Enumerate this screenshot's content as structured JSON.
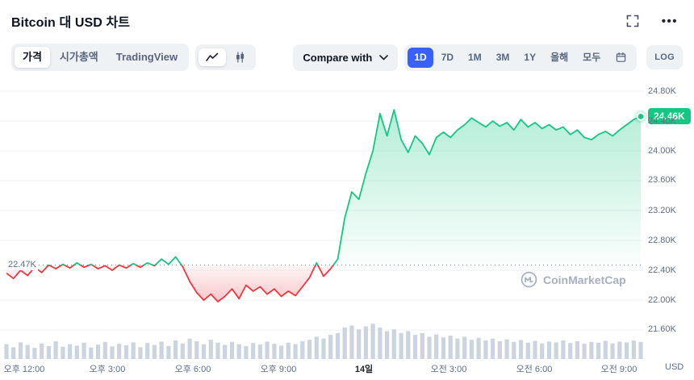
{
  "header": {
    "title": "Bitcoin 대 USD 차트"
  },
  "toolbar": {
    "tabs": [
      {
        "label": "가격",
        "active": true
      },
      {
        "label": "시가총액",
        "active": false
      },
      {
        "label": "TradingView",
        "active": false
      }
    ],
    "chart_type_toggle": [
      {
        "icon": "line-chart-icon",
        "active": true
      },
      {
        "icon": "candlestick-icon",
        "active": false
      }
    ],
    "compare_label": "Compare with",
    "ranges": [
      {
        "label": "1D",
        "active": true
      },
      {
        "label": "7D",
        "active": false
      },
      {
        "label": "1M",
        "active": false
      },
      {
        "label": "3M",
        "active": false
      },
      {
        "label": "1Y",
        "active": false
      },
      {
        "label": "올해",
        "active": false
      },
      {
        "label": "모두",
        "active": false
      }
    ],
    "log_label": "LOG"
  },
  "chart": {
    "baseline_label": "22.47K",
    "current_price_label": "24.46K",
    "y_ticks": [
      "24.80K",
      "24.40K",
      "24.00K",
      "23.60K",
      "23.20K",
      "22.80K",
      "22.40K",
      "22.00K",
      "21.60K"
    ],
    "x_ticks": [
      "오후 12:00",
      "오후 3:00",
      "오후 6:00",
      "오후 9:00",
      "14일",
      "오전 3:00",
      "오전 6:00",
      "오전 9:00"
    ],
    "x_tick_emphasis_index": 4,
    "unit_label": "USD",
    "watermark": "CoinMarketCap"
  },
  "colors": {
    "green": "#16c784",
    "red": "#ea3943",
    "blue": "#3861fb",
    "grid": "#eff2f5",
    "axis_text": "#616e85",
    "baseline": "#808a9d",
    "volume": "#ccd4e0",
    "watermark": "#a6b0c3"
  },
  "chart_data": {
    "type": "area",
    "title": "Bitcoin 대 USD 차트",
    "unit": "USD",
    "baseline": 22.47,
    "last_price": 24.46,
    "interval_minutes": 15,
    "ylim": [
      21.45,
      24.93
    ],
    "y_ticks_values": [
      24.8,
      24.4,
      24.0,
      23.6,
      23.2,
      22.8,
      22.4,
      22.0,
      21.6
    ],
    "x_tick_labels": [
      "오후 12:00",
      "오후 3:00",
      "오후 6:00",
      "오후 9:00",
      "14일",
      "오전 3:00",
      "오전 6:00",
      "오전 9:00"
    ],
    "prices": [
      22.36,
      22.29,
      22.4,
      22.33,
      22.44,
      22.37,
      22.47,
      22.42,
      22.48,
      22.43,
      22.5,
      22.44,
      22.48,
      22.42,
      22.46,
      22.4,
      22.47,
      22.43,
      22.49,
      22.44,
      22.5,
      22.46,
      22.55,
      22.48,
      22.58,
      22.45,
      22.25,
      22.1,
      22.0,
      22.08,
      21.98,
      22.05,
      22.15,
      22.02,
      22.2,
      22.12,
      22.18,
      22.08,
      22.15,
      22.05,
      22.12,
      22.06,
      22.18,
      22.3,
      22.5,
      22.32,
      22.42,
      22.55,
      23.1,
      23.45,
      23.35,
      23.7,
      24.0,
      24.5,
      24.2,
      24.55,
      24.15,
      23.98,
      24.2,
      24.1,
      23.95,
      24.18,
      24.25,
      24.18,
      24.28,
      24.35,
      24.44,
      24.38,
      24.32,
      24.4,
      24.33,
      24.38,
      24.28,
      24.42,
      24.32,
      24.38,
      24.3,
      24.35,
      24.28,
      24.32,
      24.22,
      24.28,
      24.18,
      24.15,
      24.22,
      24.26,
      24.2,
      24.28,
      24.35,
      24.42,
      24.46
    ],
    "volumes": [
      0.4,
      0.32,
      0.45,
      0.38,
      0.3,
      0.42,
      0.35,
      0.48,
      0.33,
      0.4,
      0.36,
      0.44,
      0.31,
      0.39,
      0.46,
      0.34,
      0.41,
      0.37,
      0.45,
      0.32,
      0.43,
      0.38,
      0.47,
      0.35,
      0.5,
      0.42,
      0.55,
      0.48,
      0.4,
      0.52,
      0.44,
      0.38,
      0.46,
      0.4,
      0.35,
      0.43,
      0.39,
      0.47,
      0.41,
      0.36,
      0.44,
      0.4,
      0.48,
      0.52,
      0.6,
      0.55,
      0.65,
      0.7,
      0.85,
      0.9,
      0.8,
      0.88,
      0.95,
      0.85,
      0.75,
      0.8,
      0.7,
      0.75,
      0.65,
      0.7,
      0.6,
      0.66,
      0.58,
      0.63,
      0.55,
      0.6,
      0.52,
      0.57,
      0.5,
      0.55,
      0.48,
      0.53,
      0.46,
      0.51,
      0.44,
      0.49,
      0.42,
      0.47,
      0.45,
      0.5,
      0.43,
      0.48,
      0.41,
      0.46,
      0.44,
      0.49,
      0.42,
      0.47,
      0.45,
      0.5,
      0.46
    ]
  }
}
